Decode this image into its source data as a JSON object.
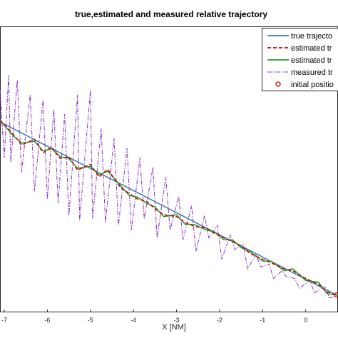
{
  "chart_data": {
    "type": "line",
    "title": "true,estimated and measured relative trajectory",
    "xlabel": "X [NM]",
    "ylabel": "",
    "xlim": [
      -7.1,
      0.75
    ],
    "ylim": [
      -1.95,
      1.0
    ],
    "xticks": [
      -7,
      -6,
      -5,
      -4,
      -3,
      -2,
      -1,
      0
    ],
    "xtick_labels": [
      "-7",
      "-6",
      "-5",
      "-4",
      "-3",
      "-2",
      "-1",
      "0"
    ],
    "grid": false,
    "legend_position": "top-right",
    "legend_entries": [
      "true trajecto",
      "estimated tr",
      "estimated tr",
      "measured tr",
      "initial positio"
    ],
    "series": [
      {
        "name": "true trajecto",
        "color": "#3b78b5",
        "style": "solid",
        "x": [
          -7.1,
          0.75
        ],
        "y": [
          0.02,
          -1.78
        ]
      },
      {
        "name": "estimated tr",
        "color": "#d40000",
        "style": "dashed",
        "x": [
          -7.1,
          -6.8,
          -6.6,
          -6.3,
          -6.1,
          -5.9,
          -5.7,
          -5.5,
          -5.3,
          -5.0,
          -4.8,
          -4.6,
          -4.3,
          -4.1,
          -3.9,
          -3.7,
          -3.5,
          -3.3,
          -3.0,
          -2.8,
          -2.6,
          -2.3,
          -2.1,
          -1.9,
          -1.7,
          -1.5,
          -1.3,
          -1.0,
          -0.8,
          -0.5,
          -0.3,
          0.0,
          0.3,
          0.5,
          0.75
        ],
        "y": [
          0.03,
          -0.1,
          -0.22,
          -0.16,
          -0.3,
          -0.24,
          -0.36,
          -0.34,
          -0.48,
          -0.42,
          -0.55,
          -0.47,
          -0.66,
          -0.72,
          -0.78,
          -0.8,
          -0.88,
          -0.94,
          -0.96,
          -1.02,
          -1.06,
          -1.08,
          -1.14,
          -1.18,
          -1.22,
          -1.26,
          -1.34,
          -1.4,
          -1.44,
          -1.5,
          -1.52,
          -1.6,
          -1.66,
          -1.74,
          -1.78
        ]
      },
      {
        "name": "estimated tr",
        "color": "#1b9e1b",
        "style": "solid",
        "x": [
          -7.1,
          -6.8,
          -6.6,
          -6.3,
          -6.1,
          -5.9,
          -5.7,
          -5.5,
          -5.3,
          -5.0,
          -4.8,
          -4.6,
          -4.3,
          -4.1,
          -3.9,
          -3.7,
          -3.5,
          -3.3,
          -3.0,
          -2.8,
          -2.6,
          -2.3,
          -2.1,
          -1.9,
          -1.7,
          -1.5,
          -1.3,
          -1.0,
          -0.8,
          -0.5,
          -0.3,
          0.0,
          0.3,
          0.5,
          0.75
        ],
        "y": [
          0.04,
          -0.12,
          -0.2,
          -0.18,
          -0.28,
          -0.26,
          -0.34,
          -0.36,
          -0.46,
          -0.44,
          -0.53,
          -0.49,
          -0.64,
          -0.74,
          -0.76,
          -0.82,
          -0.86,
          -0.96,
          -0.94,
          -1.04,
          -1.04,
          -1.1,
          -1.12,
          -1.2,
          -1.2,
          -1.28,
          -1.32,
          -1.42,
          -1.42,
          -1.52,
          -1.5,
          -1.62,
          -1.64,
          -1.76,
          -1.77
        ]
      },
      {
        "name": "measured tr",
        "color": "#8b2fc9",
        "style": "dashdot",
        "x": [
          -7.1,
          -7.0,
          -6.9,
          -6.85,
          -6.7,
          -6.6,
          -6.4,
          -6.3,
          -6.1,
          -6.0,
          -5.85,
          -5.75,
          -5.6,
          -5.5,
          -5.3,
          -5.25,
          -5.0,
          -4.95,
          -4.75,
          -4.65,
          -4.45,
          -4.35,
          -4.15,
          -4.05,
          -3.85,
          -3.75,
          -3.55,
          -3.45,
          -3.25,
          -3.15,
          -2.95,
          -2.85,
          -2.65,
          -2.55,
          -2.35,
          -2.25,
          -2.05,
          -1.95,
          -1.75,
          -1.65,
          -1.45,
          -1.35,
          -1.15,
          -1.05,
          -0.85,
          -0.75,
          -0.55,
          -0.45,
          -0.25,
          -0.15,
          0.1,
          0.2,
          0.45,
          0.55,
          0.75
        ],
        "y": [
          0.35,
          -0.35,
          0.5,
          -0.4,
          0.45,
          -0.5,
          0.3,
          -0.7,
          0.25,
          -0.78,
          0.15,
          -0.82,
          0.1,
          -0.95,
          0.3,
          -1.0,
          0.35,
          -0.98,
          -0.05,
          -1.02,
          -0.15,
          -1.05,
          -0.25,
          -1.1,
          -0.35,
          -0.98,
          -0.45,
          -1.18,
          -0.55,
          -1.1,
          -0.75,
          -1.2,
          -0.85,
          -1.32,
          -0.95,
          -1.18,
          -1.05,
          -1.4,
          -1.15,
          -1.3,
          -1.25,
          -1.5,
          -1.35,
          -1.48,
          -1.45,
          -1.6,
          -1.52,
          -1.58,
          -1.6,
          -1.7,
          -1.62,
          -1.75,
          -1.68,
          -1.8,
          -1.78
        ]
      },
      {
        "name": "initial positio",
        "color": "#d40000",
        "style": "marker-circle",
        "x": [
          0.72
        ],
        "y": [
          -1.77
        ]
      }
    ]
  }
}
